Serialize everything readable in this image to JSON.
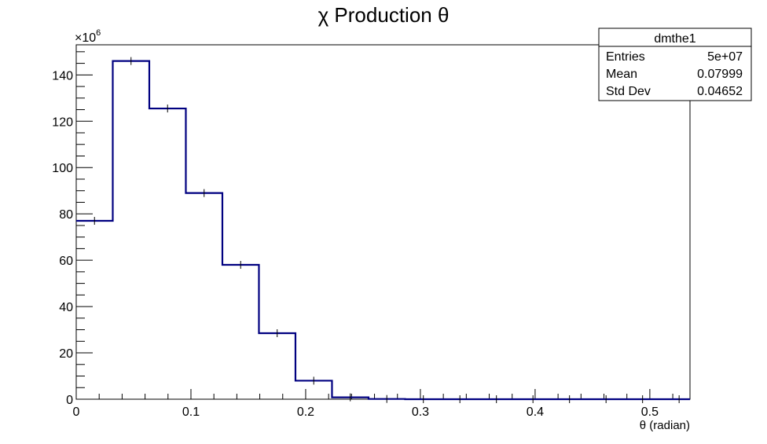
{
  "chart_data": {
    "type": "bar",
    "title": "χ Production θ",
    "xlabel": "θ (radian)",
    "ylabel": "",
    "y_multiplier": "×10",
    "y_multiplier_exp": "6",
    "bin_edges": [
      0,
      0.03185,
      0.0637,
      0.09555,
      0.1274,
      0.15925,
      0.1911,
      0.22295,
      0.2548,
      0.28665,
      0.3185,
      0.35035,
      0.3822,
      0.41405,
      0.4459,
      0.47775,
      0.5096,
      0.54145
    ],
    "values": [
      77,
      146,
      125.5,
      89,
      58,
      28.5,
      8,
      0.8,
      0.1,
      0,
      0,
      0,
      0,
      0,
      0,
      0,
      0
    ],
    "xlim": [
      0,
      0.535
    ],
    "ylim": [
      0,
      153
    ],
    "x_ticks": [
      0,
      0.1,
      0.2,
      0.3,
      0.4,
      0.5
    ],
    "x_tick_labels": [
      "0",
      "0.1",
      "0.2",
      "0.3",
      "0.4",
      "0.5"
    ],
    "y_ticks": [
      0,
      20,
      40,
      60,
      80,
      100,
      120,
      140
    ],
    "y_tick_labels": [
      "0",
      "20",
      "40",
      "60",
      "80",
      "100",
      "120",
      "140"
    ],
    "line_color": "#000080",
    "grid": false
  },
  "stats_box": {
    "name": "dmthe1",
    "rows": [
      {
        "label": "Entries",
        "value": "5e+07"
      },
      {
        "label": "Mean",
        "value": "0.07999"
      },
      {
        "label": "Std Dev",
        "value": "0.04652"
      }
    ]
  }
}
